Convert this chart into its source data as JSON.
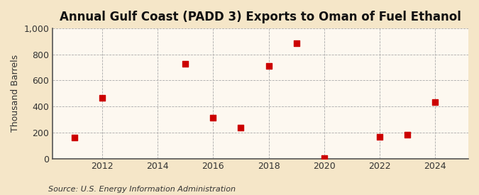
{
  "title": "Annual Gulf Coast (PADD 3) Exports to Oman of Fuel Ethanol",
  "ylabel": "Thousand Barrels",
  "source": "Source: U.S. Energy Information Administration",
  "years": [
    2011,
    2012,
    2015,
    2016,
    2017,
    2018,
    2019,
    2020,
    2022,
    2023,
    2024
  ],
  "values": [
    160,
    465,
    730,
    315,
    235,
    710,
    885,
    2,
    165,
    185,
    435
  ],
  "marker_color": "#cc0000",
  "marker_size": 28,
  "figure_bg_color": "#f5e6c8",
  "plot_bg_color": "#fdf8f0",
  "grid_color": "#aaaaaa",
  "spine_color": "#555555",
  "xlim": [
    2010.2,
    2025.2
  ],
  "ylim": [
    0,
    1000
  ],
  "yticks": [
    0,
    200,
    400,
    600,
    800,
    1000
  ],
  "ytick_labels": [
    "0",
    "200",
    "400",
    "600",
    "800",
    "1,000"
  ],
  "xticks": [
    2012,
    2014,
    2016,
    2018,
    2020,
    2022,
    2024
  ],
  "title_fontsize": 12,
  "tick_fontsize": 9,
  "ylabel_fontsize": 9,
  "source_fontsize": 8
}
